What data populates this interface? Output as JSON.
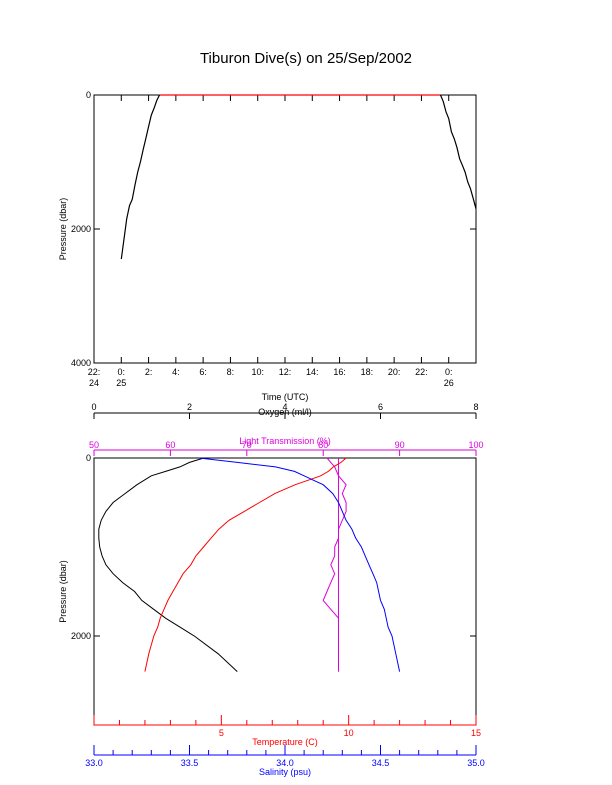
{
  "title": "Tiburon Dive(s) on 25/Sep/2002",
  "colors": {
    "axis": "#000000",
    "time_trace": "#000000",
    "surface_trace": "#ff0000",
    "oxygen": "#000000",
    "light": "#dd00dd",
    "temperature": "#ff0000",
    "salinity": "#0000ff"
  },
  "chart_data": [
    {
      "type": "line",
      "xlabel": "Time (UTC)",
      "ylabel": "Pressure (dbar)",
      "ylim": [
        4000,
        0
      ],
      "y_ticks": [
        "0",
        "2000",
        "4000"
      ],
      "x_ticks": [
        {
          "t": 22,
          "l1": "22:",
          "l2": "24"
        },
        {
          "t": 24,
          "l1": "0:",
          "l2": "25"
        },
        {
          "t": 26,
          "l1": "2:",
          "l2": ""
        },
        {
          "t": 28,
          "l1": "4:",
          "l2": ""
        },
        {
          "t": 30,
          "l1": "6:",
          "l2": ""
        },
        {
          "t": 32,
          "l1": "8:",
          "l2": ""
        },
        {
          "t": 34,
          "l1": "10:",
          "l2": ""
        },
        {
          "t": 36,
          "l1": "12:",
          "l2": ""
        },
        {
          "t": 38,
          "l1": "14:",
          "l2": ""
        },
        {
          "t": 40,
          "l1": "16:",
          "l2": ""
        },
        {
          "t": 42,
          "l1": "18:",
          "l2": ""
        },
        {
          "t": 44,
          "l1": "20:",
          "l2": ""
        },
        {
          "t": 46,
          "l1": "22:",
          "l2": ""
        },
        {
          "t": 48,
          "l1": "0:",
          "l2": "26"
        }
      ],
      "descent": {
        "x": [
          24.0,
          24.2,
          24.4,
          24.6,
          24.8,
          25.0,
          25.2,
          25.4,
          25.6,
          25.8,
          26.0,
          26.2,
          26.4,
          26.6,
          26.8
        ],
        "y": [
          2450,
          2150,
          1850,
          1650,
          1560,
          1350,
          1150,
          1000,
          820,
          650,
          470,
          300,
          200,
          80,
          0
        ]
      },
      "surface": {
        "x": [
          26.8,
          47.4
        ],
        "y": [
          0,
          0
        ]
      },
      "ascent": {
        "x": [
          47.4,
          47.6,
          47.8,
          48.0,
          48.2,
          48.4,
          48.6,
          48.8,
          49.0,
          49.2,
          49.4,
          49.6,
          49.8,
          50.0
        ],
        "y": [
          0,
          100,
          250,
          350,
          550,
          650,
          780,
          950,
          1050,
          1150,
          1300,
          1400,
          1550,
          1700
        ]
      }
    },
    {
      "type": "line",
      "ylabel": "Pressure (dbar)",
      "ylim": [
        3000,
        0
      ],
      "y_ticks": [
        "0",
        "2000"
      ],
      "axes": {
        "oxygen": {
          "label": "Oxygen (ml/l)",
          "range": [
            0,
            8
          ],
          "ticks": [
            "0",
            "2",
            "4",
            "6",
            "8"
          ]
        },
        "light": {
          "label": "Light Transmission (%)",
          "range": [
            50,
            100
          ],
          "ticks": [
            "50",
            "60",
            "70",
            "80",
            "90",
            "100"
          ]
        },
        "temperature": {
          "label": "Temperature (C)",
          "range": [
            0,
            15
          ],
          "ticks": [
            "5",
            "10",
            "15"
          ]
        },
        "salinity": {
          "label": "Salinity (psu)",
          "range": [
            33.0,
            35.0
          ],
          "ticks": [
            "33.0",
            "33.5",
            "34.0",
            "34.5",
            "35.0"
          ]
        }
      },
      "series": [
        {
          "name": "Oxygen (ml/l)",
          "axis": "oxygen",
          "pressure": [
            0,
            50,
            100,
            150,
            200,
            300,
            400,
            500,
            600,
            700,
            800,
            900,
            1000,
            1100,
            1200,
            1300,
            1400,
            1500,
            1600,
            1700,
            1800,
            1900,
            2000,
            2200,
            2400
          ],
          "values": [
            2.3,
            2.0,
            1.8,
            1.5,
            1.2,
            0.9,
            0.65,
            0.4,
            0.25,
            0.15,
            0.1,
            0.1,
            0.12,
            0.17,
            0.25,
            0.4,
            0.6,
            0.85,
            1.0,
            1.25,
            1.5,
            1.8,
            2.1,
            2.6,
            3.0
          ]
        },
        {
          "name": "Light Transmission (%)",
          "axis": "light",
          "pressure": [
            0,
            50,
            100,
            200,
            300,
            400,
            500,
            600,
            700,
            800,
            900,
            1000,
            1100,
            1200,
            1300,
            1400,
            1500,
            1600,
            1700,
            1800,
            1900,
            2000,
            2200,
            2400
          ],
          "values": [
            80.5,
            81.0,
            81.5,
            82.0,
            83.0,
            82.5,
            83.0,
            83.0,
            82.5,
            82.0,
            82.0,
            81.5,
            81.5,
            81.0,
            81.5,
            81.0,
            80.5,
            80.0,
            81.0,
            82.0,
            82.0,
            82.0,
            82.0,
            82.0
          ]
        },
        {
          "name": "Temperature (C)",
          "axis": "temperature",
          "pressure": [
            0,
            50,
            100,
            150,
            200,
            250,
            300,
            400,
            500,
            600,
            700,
            800,
            900,
            1000,
            1100,
            1200,
            1300,
            1400,
            1500,
            1600,
            1700,
            1800,
            1900,
            2000,
            2200,
            2400
          ],
          "values": [
            9.9,
            9.7,
            9.4,
            9.2,
            8.9,
            8.4,
            7.9,
            7.1,
            6.5,
            5.9,
            5.3,
            4.9,
            4.6,
            4.3,
            4.0,
            3.8,
            3.5,
            3.3,
            3.1,
            2.9,
            2.75,
            2.6,
            2.5,
            2.35,
            2.15,
            2.0
          ]
        },
        {
          "name": "Salinity (psu)",
          "axis": "salinity",
          "pressure": [
            0,
            50,
            100,
            150,
            200,
            250,
            300,
            400,
            500,
            600,
            700,
            800,
            900,
            1000,
            1100,
            1200,
            1300,
            1400,
            1500,
            1600,
            1700,
            1800,
            1900,
            2000,
            2200,
            2400
          ],
          "values": [
            33.55,
            33.75,
            33.95,
            34.05,
            34.1,
            34.15,
            34.2,
            34.25,
            34.28,
            34.3,
            34.32,
            34.35,
            34.37,
            34.4,
            34.42,
            34.44,
            34.46,
            34.48,
            34.49,
            34.5,
            34.52,
            34.53,
            34.54,
            34.56,
            34.58,
            34.6
          ]
        }
      ],
      "reference_line": {
        "axis": "light",
        "value": 82.0,
        "pressure_range": [
          0,
          2400
        ]
      }
    }
  ]
}
